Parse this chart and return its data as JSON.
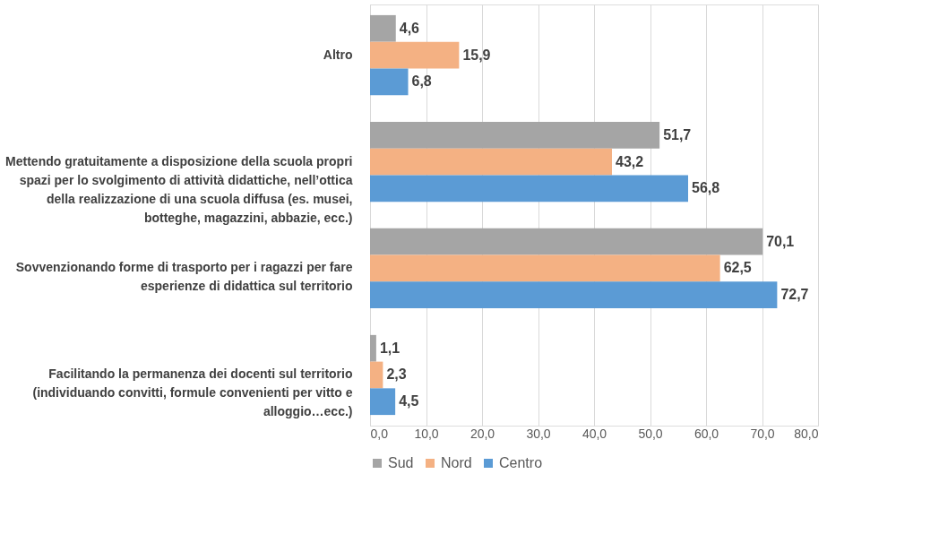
{
  "chart_data": {
    "type": "bar",
    "orientation": "horizontal",
    "categories": [
      "Altro",
      "Mettendo gratuitamente a disposizione della scuola propri spazi per lo svolgimento di attività didattiche, nell’ottica della realizzazione di una scuola diffusa (es. musei, botteghe, magazzini, abbazie, ecc.)",
      "Sovvenzionando forme di trasporto per i ragazzi per fare esperienze di didattica sul territorio",
      "Facilitando la permanenza dei docenti sul territorio (individuando convitti, formule convenienti per vitto e alloggio…ecc.)"
    ],
    "series": [
      {
        "name": "Sud",
        "color": "#a5a5a5",
        "values": [
          4.6,
          51.7,
          70.1,
          1.1
        ],
        "value_labels": [
          "4,6",
          "51,7",
          "70,1",
          "1,1"
        ]
      },
      {
        "name": "Nord",
        "color": "#f4b183",
        "values": [
          15.9,
          43.2,
          62.5,
          2.3
        ],
        "value_labels": [
          "15,9",
          "43,2",
          "62,5",
          "2,3"
        ]
      },
      {
        "name": "Centro",
        "color": "#5b9bd5",
        "values": [
          6.8,
          56.8,
          72.7,
          4.5
        ],
        "value_labels": [
          "6,8",
          "56,8",
          "72,7",
          "4,5"
        ]
      }
    ],
    "xlim": [
      0,
      80
    ],
    "xticks": [
      {
        "value": 0,
        "label": "0,0"
      },
      {
        "value": 10,
        "label": "10,0"
      },
      {
        "value": 20,
        "label": "20,0"
      },
      {
        "value": 30,
        "label": "30,0"
      },
      {
        "value": 40,
        "label": "40,0"
      },
      {
        "value": 50,
        "label": "50,0"
      },
      {
        "value": 60,
        "label": "60,0"
      },
      {
        "value": 70,
        "label": "70,0"
      },
      {
        "value": 80,
        "label": "80,0"
      }
    ],
    "grid": "x",
    "legend": "bottom"
  }
}
